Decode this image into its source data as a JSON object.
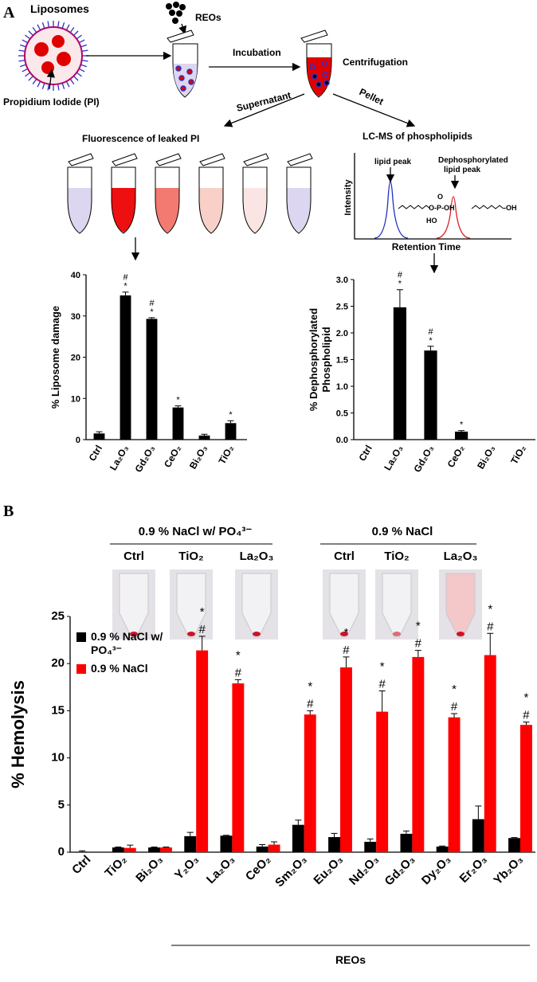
{
  "diagram": {
    "panel_a": "A",
    "liposomes": "Liposomes",
    "reos": "REOs",
    "pi": "Propidium Iodide (PI)",
    "incubation": "Incubation",
    "centrifugation": "Centrifugation",
    "supernatant": "Supernatant",
    "pellet": "Pellet",
    "fluorescence": "Fluorescence of leaked PI",
    "lcms": "LC-MS of phospholipids",
    "intensity": "Intensity",
    "retention_time": "Retention Time",
    "lipid_peak": "lipid peak",
    "dephos_peak": [
      "Dephosphorylated",
      "lipid peak"
    ],
    "phosphate": "O-P-OH",
    "o_top": "O",
    "ho": "HO",
    "oh": "-OH",
    "panel_b": "B"
  },
  "photos": {
    "groups": [
      {
        "title": "0.9 % NaCl w/ PO₄³⁻",
        "labels": [
          "Ctrl",
          "TiO₂",
          "La₂O₃"
        ]
      },
      {
        "title": "0.9 % NaCl",
        "labels": [
          "Ctrl",
          "TiO₂",
          "La₂O₃"
        ]
      }
    ]
  },
  "chart_data": [
    {
      "type": "bar",
      "ylabel": "% Liposome damage",
      "categories": [
        "Ctrl",
        "La₂O₃",
        "Gd₂O₃",
        "CeO₂",
        "Bi₂O₃",
        "TiO₂"
      ],
      "values": [
        1.5,
        35,
        29.3,
        7.8,
        1.0,
        4.0
      ],
      "errors": [
        0.4,
        0.8,
        0.3,
        0.4,
        0.3,
        0.6
      ],
      "color": "#000000",
      "significance": [
        null,
        [
          "#",
          "*"
        ],
        [
          "#",
          "*"
        ],
        [
          "*"
        ],
        null,
        [
          "*"
        ]
      ],
      "ylim": [
        0,
        40
      ],
      "yticks": [
        0,
        10,
        20,
        30,
        40
      ],
      "grid": false
    },
    {
      "type": "bar",
      "ylabel": [
        "% Dephosphorylated",
        "Phospholipid"
      ],
      "categories": [
        "Ctrl",
        "La₂O₃",
        "Gd₂O₃",
        "CeO₂",
        "Bi₂O₃",
        "TiO₂"
      ],
      "values": [
        0,
        2.48,
        1.67,
        0.15,
        0,
        0
      ],
      "errors": [
        null,
        0.33,
        0.08,
        0.02,
        null,
        null
      ],
      "color": "#000000",
      "significance": [
        null,
        [
          "#",
          "*"
        ],
        [
          "#",
          "*"
        ],
        [
          "*"
        ],
        null,
        null
      ],
      "ylim": [
        0,
        3
      ],
      "yticks": [
        {
          "value": 0,
          "label": "0.0"
        },
        0.5,
        {
          "value": 1,
          "label": "1.0"
        },
        1.5,
        {
          "value": 2,
          "label": "2.0"
        },
        2.5,
        {
          "value": 3,
          "label": "3.0"
        }
      ],
      "grid": false
    },
    {
      "type": "bar",
      "ylabel": "% Hemolysis",
      "group_label": "REOs",
      "categories": [
        "Ctrl",
        "TiO₂",
        "Bi₂O₃",
        "Y₂O₃",
        "La₂O₃",
        "CeO₂",
        "Sm₂O₃",
        "Eu₂O₃",
        "Nd₂O₃",
        "Gd₂O₃",
        "Dy₂O₃",
        "Er₂O₃",
        "Yb₂O₃"
      ],
      "series": [
        {
          "name": "0.9 % NaCl w/ PO₄³⁻",
          "color": "#000000",
          "values": [
            0.05,
            0.5,
            0.5,
            1.7,
            1.75,
            0.6,
            2.9,
            1.6,
            1.1,
            1.95,
            0.6,
            3.5,
            1.5
          ],
          "errors": [
            0.1,
            0.05,
            0.05,
            0.4,
            0.05,
            0.2,
            0.5,
            0.4,
            0.3,
            0.3,
            0.05,
            1.4,
            0.05
          ]
        },
        {
          "name": "0.9 % NaCl",
          "color": "#ff0000",
          "values": [
            0,
            0.45,
            0.5,
            21.4,
            17.9,
            0.8,
            14.6,
            19.6,
            14.9,
            20.7,
            14.3,
            20.9,
            13.5
          ],
          "errors": [
            null,
            0.3,
            0.05,
            1.5,
            0.4,
            0.3,
            0.4,
            1.1,
            2.2,
            0.7,
            0.4,
            2.3,
            0.3
          ],
          "significance": [
            null,
            null,
            null,
            [
              "*",
              "#"
            ],
            [
              "*",
              "#"
            ],
            null,
            [
              "*",
              "#"
            ],
            [
              "*",
              "#"
            ],
            [
              "*",
              "#"
            ],
            [
              "*",
              "#"
            ],
            [
              "*",
              "#"
            ],
            [
              "*",
              "#"
            ],
            [
              "*",
              "#"
            ]
          ]
        }
      ],
      "legend": "upper left",
      "ylim": [
        0,
        25
      ],
      "yticks": [
        0,
        5,
        10,
        15,
        20,
        25
      ],
      "grid": false
    }
  ]
}
